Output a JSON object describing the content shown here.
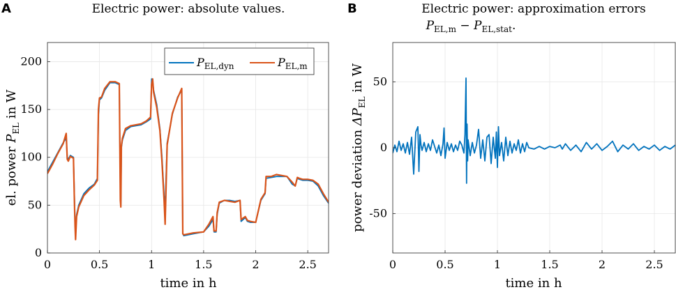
{
  "panels": {
    "a": {
      "letter": "A",
      "title": "Electric power: absolute values.",
      "ylabel_prefix": "el. power",
      "ylabel_sym": "P",
      "ylabel_sub": "EL",
      "ylabel_suffix": "in W"
    },
    "b": {
      "letter": "B",
      "title_line1": "Electric power: approximation errors",
      "title_p1": "P",
      "title_p1_sub": "EL,m",
      "title_minus": "−",
      "title_p2": "P",
      "title_p2_sub": "EL,stat",
      "title_end": ".",
      "ylabel_prefix": "power deviation",
      "ylabel_sym": "ΔP",
      "ylabel_sub": "EL",
      "ylabel_suffix": "in W"
    }
  },
  "chart_data": [
    {
      "type": "line",
      "title": "Electric power: absolute values.",
      "xlabel": "time in h",
      "ylabel": "el. power P_EL in W",
      "xlim": [
        0,
        2.7
      ],
      "ylim": [
        0,
        220
      ],
      "xticks": [
        0,
        0.5,
        1,
        1.5,
        2,
        2.5
      ],
      "xtick_labels": [
        "0",
        "0.5",
        "1",
        "1.5",
        "2",
        "2.5"
      ],
      "yticks": [
        0,
        50,
        100,
        150,
        200
      ],
      "ytick_labels": [
        "0",
        "50",
        "100",
        "150",
        "200"
      ],
      "grid": true,
      "legend_position": "top-right",
      "series": [
        {
          "name": "P_EL,dyn",
          "legend_sym": "P",
          "legend_sub": "EL,dyn",
          "color": "#0072BD",
          "x": [
            0,
            0.05,
            0.1,
            0.15,
            0.18,
            0.19,
            0.2,
            0.22,
            0.25,
            0.26,
            0.265,
            0.27,
            0.28,
            0.3,
            0.35,
            0.4,
            0.45,
            0.48,
            0.49,
            0.5,
            0.52,
            0.55,
            0.6,
            0.65,
            0.69,
            0.7,
            0.705,
            0.71,
            0.72,
            0.75,
            0.8,
            0.85,
            0.9,
            0.95,
            0.99,
            1.0,
            1.01,
            1.02,
            1.05,
            1.08,
            1.1,
            1.12,
            1.13,
            1.15,
            1.2,
            1.25,
            1.29,
            1.3,
            1.31,
            1.4,
            1.5,
            1.55,
            1.59,
            1.6,
            1.62,
            1.63,
            1.65,
            1.7,
            1.75,
            1.8,
            1.85,
            1.86,
            1.9,
            1.92,
            1.95,
            2.0,
            2.05,
            2.09,
            2.1,
            2.15,
            2.2,
            2.25,
            2.3,
            2.35,
            2.38,
            2.4,
            2.42,
            2.45,
            2.5,
            2.55,
            2.6,
            2.65,
            2.7
          ],
          "y": [
            85,
            95,
            105,
            115,
            120,
            100,
            98,
            102,
            100,
            55,
            30,
            20,
            40,
            50,
            62,
            68,
            72,
            78,
            145,
            160,
            162,
            170,
            178,
            178,
            176,
            65,
            50,
            110,
            118,
            128,
            132,
            133,
            134,
            137,
            140,
            182,
            180,
            170,
            155,
            130,
            100,
            60,
            48,
            115,
            145,
            163,
            170,
            20,
            18,
            20,
            22,
            28,
            35,
            22,
            22,
            40,
            52,
            55,
            55,
            54,
            55,
            33,
            37,
            33,
            32,
            32,
            55,
            62,
            78,
            79,
            80,
            80,
            80,
            72,
            70,
            78,
            77,
            76,
            76,
            75,
            70,
            60,
            52
          ]
        },
        {
          "name": "P_EL,m",
          "legend_sym": "P",
          "legend_sub": "EL,m",
          "color": "#D95319",
          "x": [
            0,
            0.05,
            0.1,
            0.15,
            0.18,
            0.19,
            0.2,
            0.22,
            0.25,
            0.26,
            0.265,
            0.27,
            0.28,
            0.3,
            0.35,
            0.4,
            0.45,
            0.48,
            0.49,
            0.5,
            0.52,
            0.55,
            0.6,
            0.65,
            0.69,
            0.7,
            0.705,
            0.71,
            0.72,
            0.75,
            0.8,
            0.85,
            0.9,
            0.95,
            0.99,
            1.0,
            1.01,
            1.02,
            1.05,
            1.08,
            1.1,
            1.12,
            1.13,
            1.15,
            1.2,
            1.25,
            1.29,
            1.3,
            1.31,
            1.4,
            1.5,
            1.55,
            1.59,
            1.6,
            1.62,
            1.63,
            1.65,
            1.7,
            1.75,
            1.8,
            1.85,
            1.86,
            1.9,
            1.92,
            1.95,
            2.0,
            2.05,
            2.09,
            2.1,
            2.15,
            2.2,
            2.25,
            2.3,
            2.35,
            2.38,
            2.4,
            2.42,
            2.45,
            2.5,
            2.55,
            2.6,
            2.65,
            2.7
          ],
          "y": [
            83,
            93,
            104,
            114,
            125,
            98,
            96,
            101,
            99,
            50,
            28,
            14,
            38,
            48,
            60,
            66,
            71,
            76,
            150,
            162,
            163,
            172,
            179,
            179,
            177,
            55,
            48,
            112,
            120,
            130,
            133,
            134,
            135,
            138,
            142,
            176,
            182,
            168,
            152,
            128,
            95,
            55,
            30,
            113,
            146,
            162,
            172,
            20,
            19,
            21,
            22,
            30,
            38,
            23,
            23,
            42,
            53,
            55,
            54,
            53,
            55,
            35,
            38,
            34,
            33,
            32,
            56,
            63,
            80,
            80,
            82,
            81,
            80,
            74,
            70,
            79,
            78,
            77,
            77,
            76,
            72,
            62,
            53
          ]
        }
      ]
    },
    {
      "type": "line",
      "title": "Electric power: approximation errors P_EL,m − P_EL,stat.",
      "xlabel": "time in h",
      "ylabel": "power deviation ΔP_EL in W",
      "xlim": [
        0,
        2.7
      ],
      "ylim": [
        -80,
        80
      ],
      "xticks": [
        0,
        0.5,
        1,
        1.5,
        2,
        2.5
      ],
      "xtick_labels": [
        "0",
        "0.5",
        "1",
        "1.5",
        "2",
        "2.5"
      ],
      "yticks": [
        -50,
        0,
        50
      ],
      "ytick_labels": [
        "-50",
        "0",
        "50"
      ],
      "grid": true,
      "series": [
        {
          "name": "ΔP_EL",
          "color": "#0072BD",
          "x": [
            0,
            0.02,
            0.04,
            0.06,
            0.08,
            0.1,
            0.12,
            0.14,
            0.16,
            0.18,
            0.2,
            0.22,
            0.24,
            0.25,
            0.26,
            0.27,
            0.28,
            0.3,
            0.32,
            0.34,
            0.36,
            0.38,
            0.4,
            0.42,
            0.44,
            0.46,
            0.48,
            0.49,
            0.5,
            0.52,
            0.54,
            0.56,
            0.58,
            0.6,
            0.62,
            0.64,
            0.66,
            0.68,
            0.69,
            0.7,
            0.705,
            0.71,
            0.715,
            0.72,
            0.74,
            0.76,
            0.78,
            0.8,
            0.82,
            0.84,
            0.86,
            0.88,
            0.9,
            0.92,
            0.94,
            0.96,
            0.98,
            0.99,
            1.0,
            1.01,
            1.02,
            1.04,
            1.06,
            1.08,
            1.1,
            1.12,
            1.14,
            1.16,
            1.18,
            1.2,
            1.22,
            1.24,
            1.26,
            1.28,
            1.3,
            1.35,
            1.4,
            1.45,
            1.5,
            1.55,
            1.6,
            1.62,
            1.65,
            1.7,
            1.75,
            1.8,
            1.85,
            1.9,
            1.95,
            2.0,
            2.05,
            2.1,
            2.15,
            2.2,
            2.25,
            2.3,
            2.35,
            2.4,
            2.45,
            2.5,
            2.55,
            2.6,
            2.65,
            2.7
          ],
          "y": [
            -4,
            2,
            -3,
            5,
            -2,
            3,
            -4,
            4,
            -5,
            8,
            -20,
            12,
            16,
            -18,
            10,
            2,
            -2,
            4,
            -3,
            3,
            -2,
            6,
            1,
            -4,
            2,
            -6,
            3,
            15,
            -8,
            4,
            -2,
            3,
            -3,
            2,
            -2,
            5,
            2,
            -4,
            10,
            53,
            -27,
            18,
            -10,
            6,
            -6,
            4,
            -4,
            2,
            14,
            -8,
            6,
            -10,
            8,
            10,
            -12,
            8,
            -8,
            12,
            -15,
            16,
            -6,
            4,
            -10,
            8,
            -6,
            5,
            -4,
            3,
            -2,
            6,
            -4,
            3,
            -3,
            4,
            0,
            -1,
            1,
            -1,
            1,
            0,
            2,
            -1,
            3,
            -2,
            2,
            -3,
            4,
            -1,
            3,
            -2,
            1,
            5,
            -3,
            2,
            -1,
            3,
            -2,
            1,
            -1,
            2,
            -2,
            1,
            -1,
            2
          ]
        }
      ]
    }
  ]
}
